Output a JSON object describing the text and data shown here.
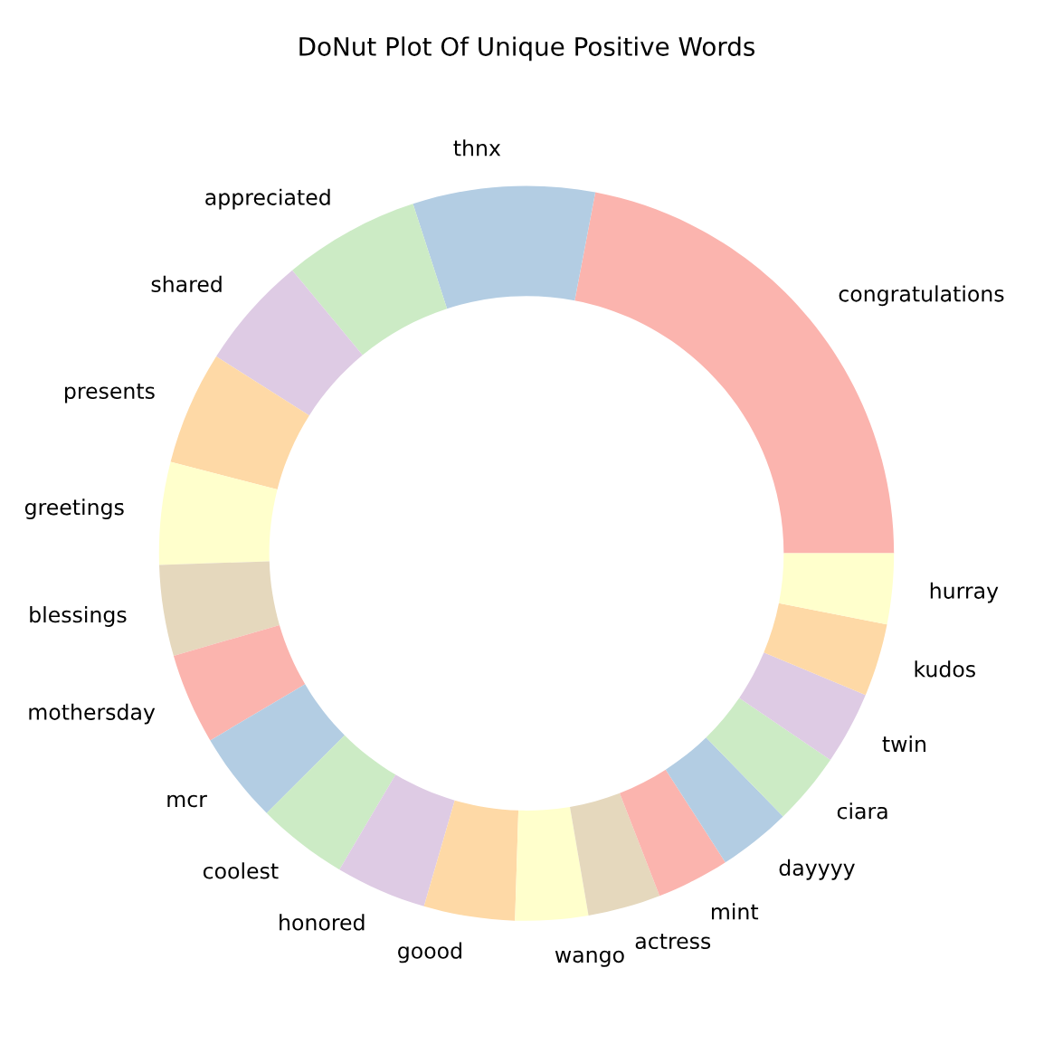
{
  "chart_data": {
    "type": "donut",
    "title": "DoNut Plot Of Unique Positive Words",
    "categories": [
      "congratulations",
      "thnx",
      "appreciated",
      "shared",
      "presents",
      "greetings",
      "blessings",
      "mothersday",
      "mcr",
      "coolest",
      "honored",
      "goood",
      "wango",
      "actress",
      "mint",
      "dayyyy",
      "ciara",
      "twin",
      "kudos",
      "hurray"
    ],
    "values": [
      22,
      8,
      6,
      5,
      5,
      4.5,
      4,
      4,
      4,
      4,
      4,
      4,
      3.2,
      3.2,
      3.2,
      3.2,
      3.2,
      3.2,
      3.2,
      3.1
    ],
    "colors": [
      "#fbb4ae",
      "#b3cde3",
      "#ccebc5",
      "#decbe4",
      "#fed9a6",
      "#ffffcc",
      "#e5d8bd",
      "#fbb4ae",
      "#b3cde3",
      "#ccebc5",
      "#decbe4",
      "#fed9a6",
      "#ffffcc",
      "#e5d8bd",
      "#fbb4ae",
      "#b3cde3",
      "#ccebc5",
      "#decbe4",
      "#fed9a6",
      "#ffffcc"
    ]
  }
}
